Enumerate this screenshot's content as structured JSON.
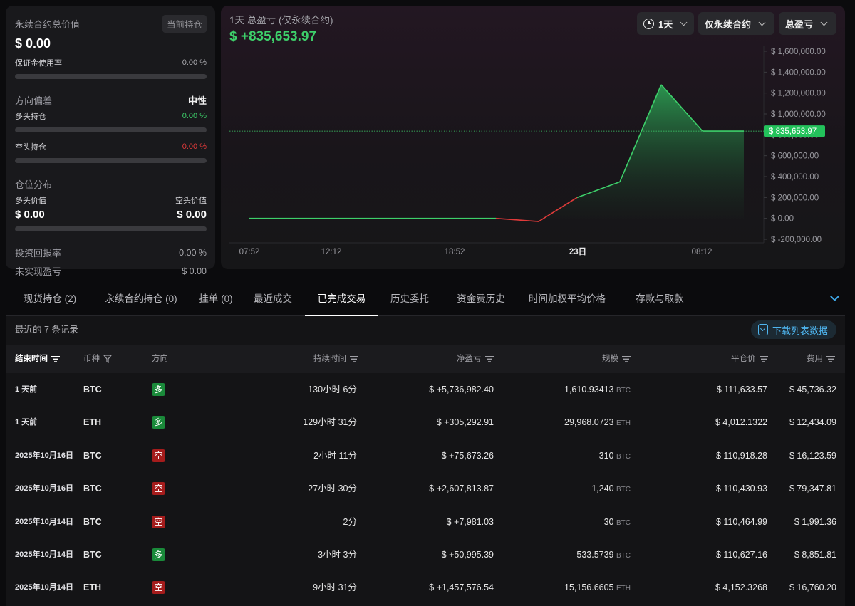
{
  "summary": {
    "perp_total_label": "永续合约总价值",
    "current_pos_button": "当前持仓",
    "perp_total_value": "$ 0.00",
    "margin_usage_label": "保证金使用率",
    "margin_usage_value": "0.00 %",
    "bias_label": "方向偏差",
    "bias_value": "中性",
    "long_pos_label": "多头持仓",
    "long_pos_value": "0.00 %",
    "short_pos_label": "空头持仓",
    "short_pos_value": "0.00 %",
    "distribution_label": "仓位分布",
    "long_value_label": "多头价值",
    "short_value_label": "空头价值",
    "long_value": "$ 0.00",
    "short_value": "$ 0.00",
    "roi_label": "投资回报率",
    "roi_value": "0.00 %",
    "unrealized_label": "未实现盈亏",
    "unrealized_value": "$ 0.00"
  },
  "chart_header": {
    "title": "1天 总盈亏 (仅永续合约)",
    "pnl": "$ +835,653.97",
    "range_dropdown": "1天",
    "scope_dropdown": "仅永续合约",
    "metric_dropdown": "总盈亏"
  },
  "chart_data": {
    "type": "area",
    "x_ticks": [
      "07:52",
      "12:12",
      "18:52",
      "23日",
      "08:12"
    ],
    "y_ticks": [
      "$ 1,600,000.00",
      "$ 1,400,000.00",
      "$ 1,200,000.00",
      "$ 1,000,000.00",
      "$ 800,000.00",
      "$ 600,000.00",
      "$ 400,000.00",
      "$ 200,000.00",
      "$ 0.00",
      "$ -200,000.00"
    ],
    "ylim": [
      -200000,
      1600000
    ],
    "x": [
      0,
      60,
      120,
      180,
      240,
      300,
      346,
      406,
      460,
      520,
      578,
      636,
      694
    ],
    "values": [
      0,
      0,
      0,
      0,
      0,
      0,
      0,
      -30000,
      200000,
      350000,
      1280000,
      835653.97,
      835653.97
    ],
    "current_label": "$ 835,653.97",
    "current_value": 835653.97,
    "colors": {
      "up": "#3dcf6a",
      "down": "#e03a3a",
      "label_bg": "#23c25b"
    }
  },
  "tabs": [
    {
      "label": "现货持仓 (2)"
    },
    {
      "label": "永续合约持仓 (0)"
    },
    {
      "label": "挂单 (0)"
    },
    {
      "label": "最近成交"
    },
    {
      "label": "已完成交易"
    },
    {
      "label": "历史委托"
    },
    {
      "label": "资金费历史"
    },
    {
      "label": "时间加权平均价格"
    },
    {
      "label": "存款与取款"
    }
  ],
  "table": {
    "records_text": "最近的 7 条记录",
    "download_label": "下载列表数据",
    "headers": {
      "end_time": "结束时间",
      "coin": "币种",
      "direction": "方向",
      "duration": "持续时间",
      "net_pnl": "净盈亏",
      "size": "规模",
      "close_price": "平仓价",
      "fee": "费用"
    },
    "rows": [
      {
        "end_time": "1 天前",
        "coin": "BTC",
        "direction": "多",
        "duration": "130小时 6分",
        "net_pnl": "$ +5,736,982.40",
        "size": "1,610.93413",
        "size_unit": "BTC",
        "close_price": "$ 111,633.57",
        "fee": "$ 45,736.32"
      },
      {
        "end_time": "1 天前",
        "coin": "ETH",
        "direction": "多",
        "duration": "129小时 31分",
        "net_pnl": "$ +305,292.91",
        "size": "29,968.0723",
        "size_unit": "ETH",
        "close_price": "$ 4,012.1322",
        "fee": "$ 12,434.09"
      },
      {
        "end_time": "2025年10月16日",
        "coin": "BTC",
        "direction": "空",
        "duration": "2小时 11分",
        "net_pnl": "$ +75,673.26",
        "size": "310",
        "size_unit": "BTC",
        "close_price": "$ 110,918.28",
        "fee": "$ 16,123.59"
      },
      {
        "end_time": "2025年10月16日",
        "coin": "BTC",
        "direction": "空",
        "duration": "27小时 30分",
        "net_pnl": "$ +2,607,813.87",
        "size": "1,240",
        "size_unit": "BTC",
        "close_price": "$ 110,430.93",
        "fee": "$ 79,347.81"
      },
      {
        "end_time": "2025年10月14日",
        "coin": "BTC",
        "direction": "空",
        "duration": "2分",
        "net_pnl": "$ +7,981.03",
        "size": "30",
        "size_unit": "BTC",
        "close_price": "$ 110,464.99",
        "fee": "$ 1,991.36"
      },
      {
        "end_time": "2025年10月14日",
        "coin": "BTC",
        "direction": "多",
        "duration": "3小时 3分",
        "net_pnl": "$ +50,995.39",
        "size": "533.5739",
        "size_unit": "BTC",
        "close_price": "$ 110,627.16",
        "fee": "$ 8,851.81"
      },
      {
        "end_time": "2025年10月14日",
        "coin": "ETH",
        "direction": "空",
        "duration": "9小时 31分",
        "net_pnl": "$ +1,457,576.54",
        "size": "15,156.6605",
        "size_unit": "ETH",
        "close_price": "$ 4,152.3268",
        "fee": "$ 16,760.20"
      }
    ]
  }
}
